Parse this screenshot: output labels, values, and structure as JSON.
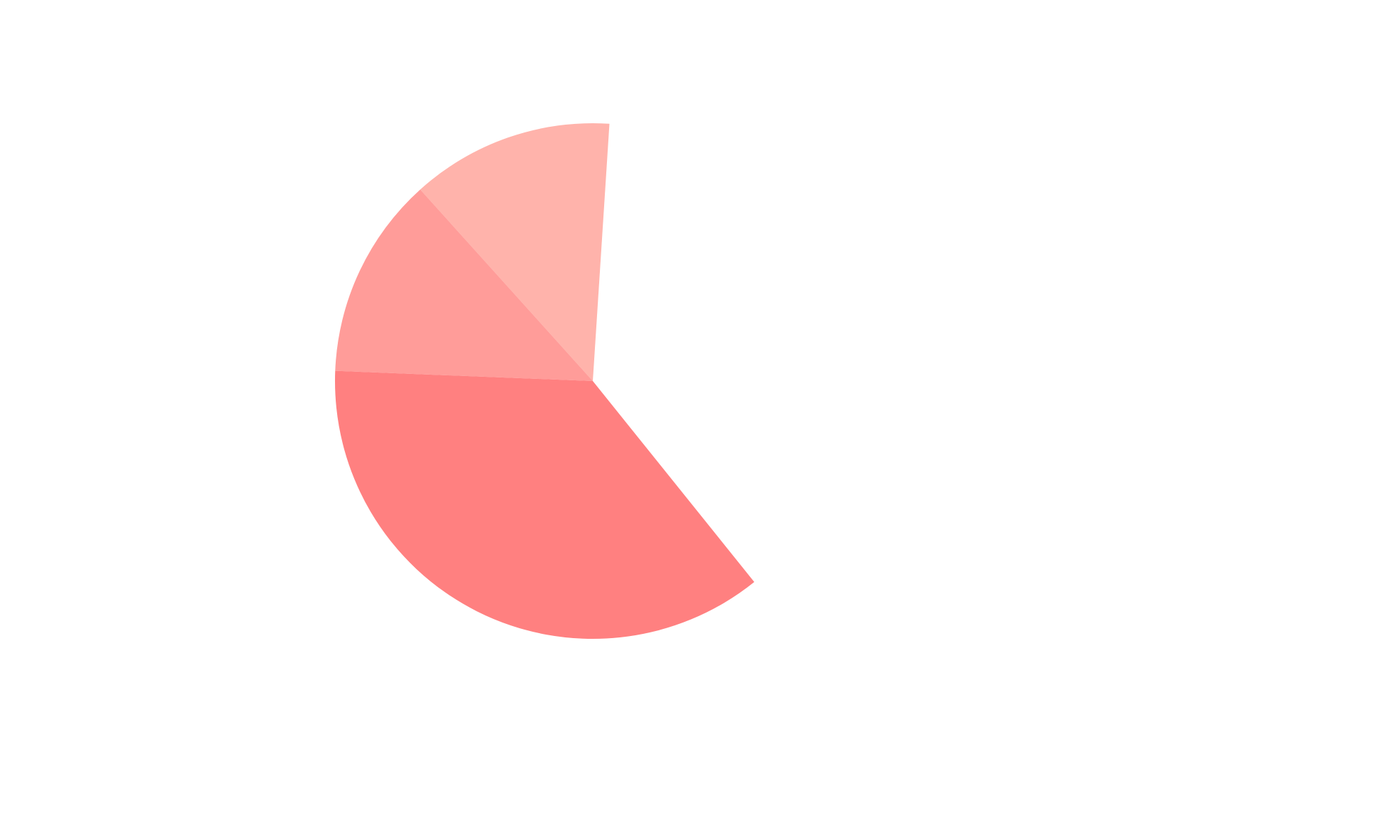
{
  "chart_data": {
    "type": "pie",
    "title": "",
    "legend": "none",
    "start_angle_deg": 86.3,
    "direction": "counterclockwise",
    "slices": [
      {
        "value": 12.7,
        "color": "#ffb3ab"
      },
      {
        "value": 12.7,
        "color": "#ff9c99"
      },
      {
        "value": 36.4,
        "color": "#ff8080"
      }
    ],
    "empty_share": 38.2
  }
}
